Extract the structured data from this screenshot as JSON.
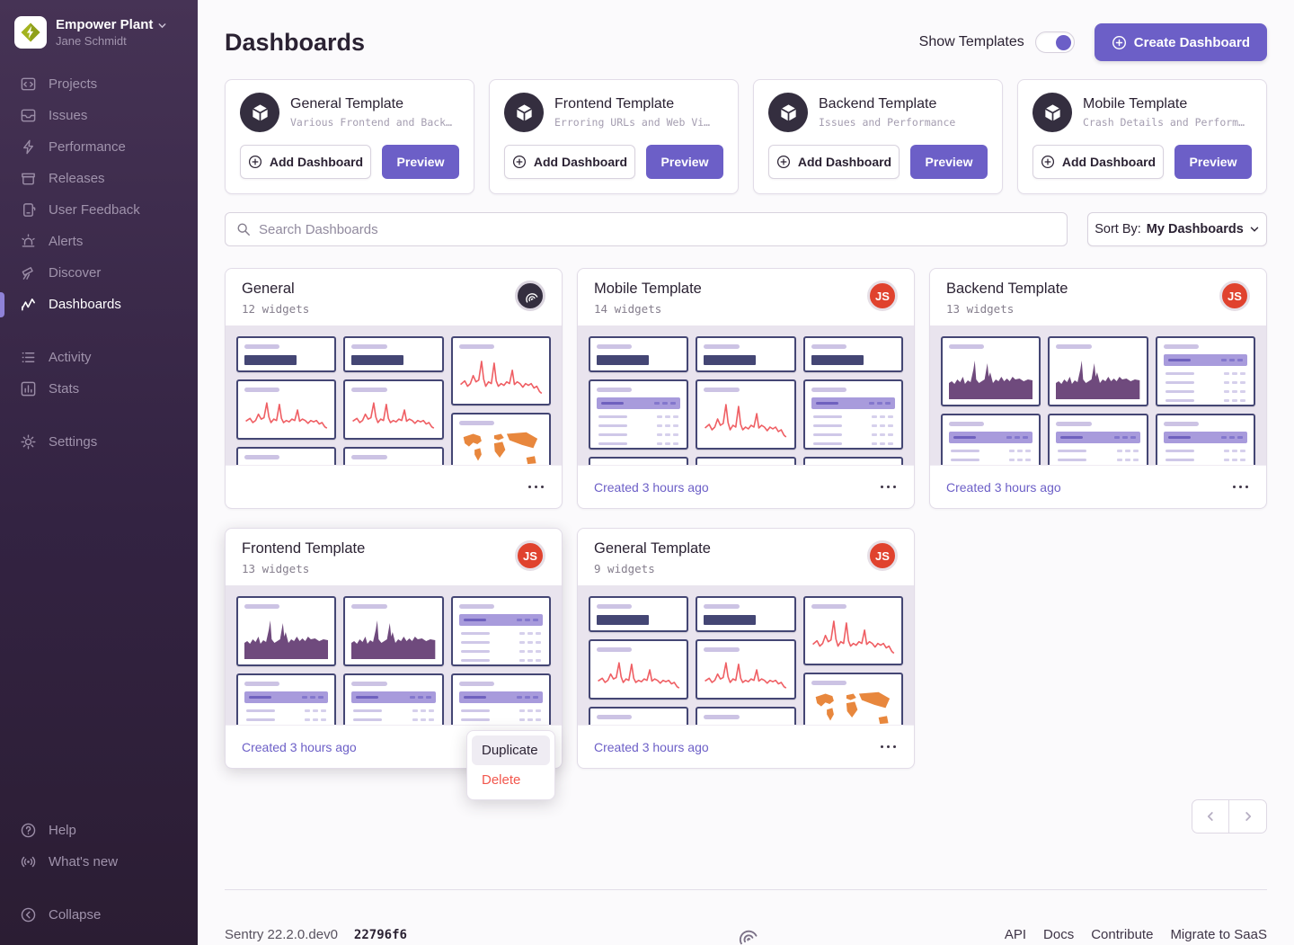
{
  "sidebar": {
    "org": {
      "name": "Empower Plant",
      "user": "Jane Schmidt"
    },
    "items": [
      {
        "label": "Projects"
      },
      {
        "label": "Issues"
      },
      {
        "label": "Performance"
      },
      {
        "label": "Releases"
      },
      {
        "label": "User Feedback"
      },
      {
        "label": "Alerts"
      },
      {
        "label": "Discover"
      },
      {
        "label": "Dashboards",
        "active": true
      },
      {
        "label": "Activity"
      },
      {
        "label": "Stats"
      },
      {
        "label": "Settings"
      }
    ],
    "footer_items": [
      {
        "label": "Help"
      },
      {
        "label": "What's new"
      },
      {
        "label": "Collapse"
      }
    ]
  },
  "header": {
    "title": "Dashboards",
    "show_templates_label": "Show Templates",
    "show_templates_on": true,
    "create_button": "Create Dashboard"
  },
  "template_actions": {
    "add": "Add Dashboard",
    "preview": "Preview"
  },
  "templates": [
    {
      "title": "General Template",
      "description": "Various Frontend and Back…"
    },
    {
      "title": "Frontend Template",
      "description": "Erroring URLs and Web Vi…"
    },
    {
      "title": "Backend Template",
      "description": "Issues and Performance"
    },
    {
      "title": "Mobile Template",
      "description": "Crash Details and Perform…"
    }
  ],
  "toolbar": {
    "search_placeholder": "Search Dashboards",
    "sort_label": "Sort By:",
    "sort_value": "My Dashboards"
  },
  "dashboards": [
    {
      "title": "General",
      "widget_count": "12 widgets",
      "created": "",
      "avatar_type": "sentry-logo",
      "avatar_initials": "",
      "preview": "general"
    },
    {
      "title": "Mobile Template",
      "widget_count": "14 widgets",
      "created": "Created 3 hours ago",
      "avatar_type": "user",
      "avatar_initials": "JS",
      "preview": "mobile"
    },
    {
      "title": "Backend Template",
      "widget_count": "13 widgets",
      "created": "Created 3 hours ago",
      "avatar_type": "user",
      "avatar_initials": "JS",
      "preview": "backend"
    },
    {
      "title": "Frontend Template",
      "widget_count": "13 widgets",
      "created": "Created 3 hours ago",
      "avatar_type": "user",
      "avatar_initials": "JS",
      "preview": "backend"
    },
    {
      "title": "General Template",
      "widget_count": "9 widgets",
      "created": "Created 3 hours ago",
      "avatar_type": "user",
      "avatar_initials": "JS",
      "preview": "general"
    }
  ],
  "previews": {
    "general": [
      [
        "bignumber",
        "line",
        "bignumber"
      ],
      [
        "bignumber",
        "line",
        "bignumber"
      ],
      [
        "line",
        "map"
      ]
    ],
    "mobile": [
      [
        "bignumber",
        "table",
        "bignumber"
      ],
      [
        "bignumber",
        "line",
        "bignumber"
      ],
      [
        "bignumber",
        "table",
        "bignumber"
      ]
    ],
    "backend": [
      [
        "area",
        "table"
      ],
      [
        "area",
        "table"
      ],
      [
        "table",
        "table"
      ]
    ]
  },
  "context_menu": {
    "items": [
      {
        "label": "Duplicate",
        "danger": false,
        "hovered": true
      },
      {
        "label": "Delete",
        "danger": true,
        "hovered": false
      }
    ]
  },
  "footer": {
    "version": "Sentry 22.2.0.dev0",
    "build": "22796f6",
    "links": [
      "API",
      "Docs",
      "Contribute",
      "Migrate to SaaS"
    ]
  },
  "colors": {
    "accent": "#6C5FC7",
    "danger": "#F2574D",
    "avatar_red": "#E0422E",
    "sidebar_top": "#463355",
    "sidebar_bottom": "#2B1D33",
    "chart_line_red": "#EF5E63",
    "chart_area_purple": "#6F4A7D",
    "map_orange": "#E8873D",
    "widget_navy": "#444674",
    "preview_bg": "#E9E4EE"
  }
}
